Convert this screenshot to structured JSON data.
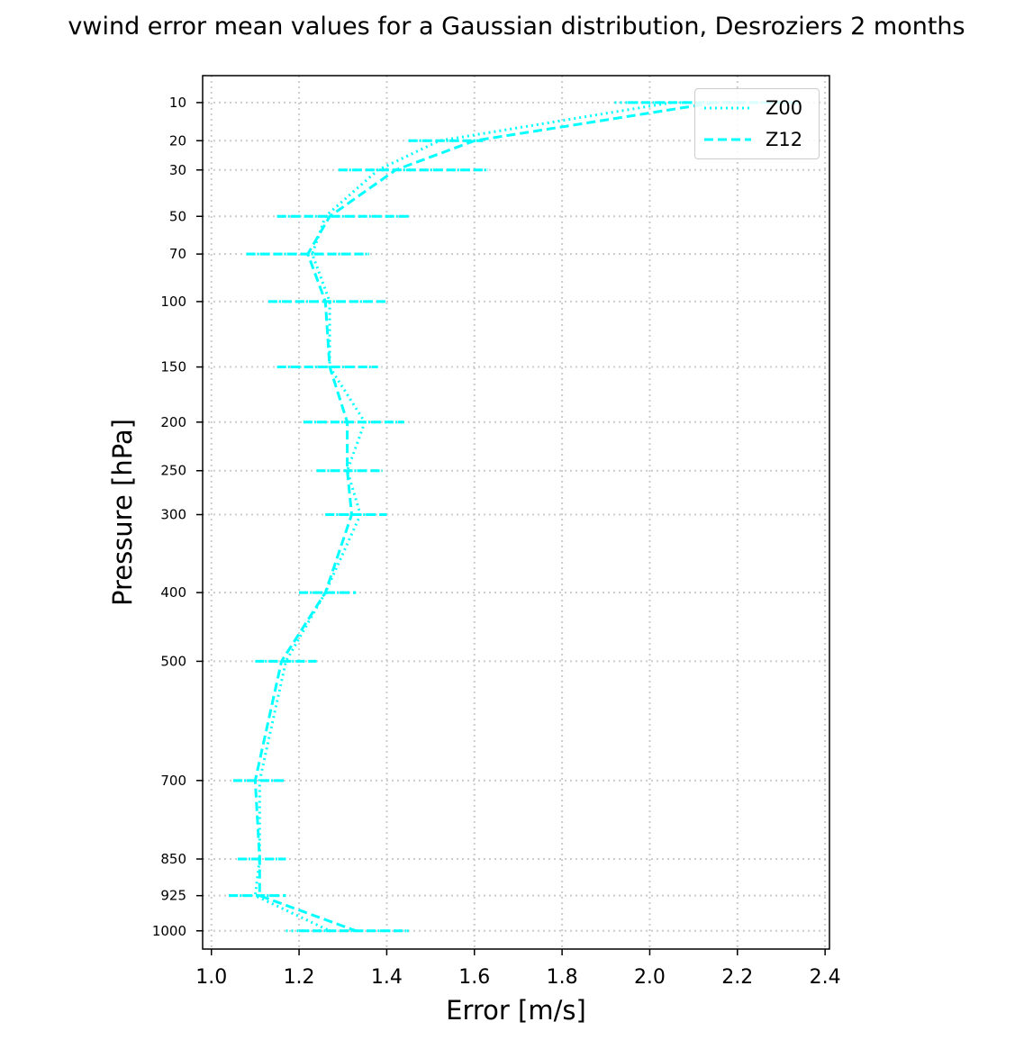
{
  "chart_data": {
    "type": "line",
    "title": "vwind error mean values for a Gaussian distribution, Desroziers 2 months",
    "xlabel": "Error [m/s]",
    "ylabel": "Pressure [hPa]",
    "xlim": [
      0.98,
      2.41
    ],
    "xticks": [
      1.0,
      1.2,
      1.4,
      1.6,
      1.8,
      2.0,
      2.2,
      2.4
    ],
    "xtick_labels": [
      "1.0",
      "1.2",
      "1.4",
      "1.6",
      "1.8",
      "2.0",
      "2.2",
      "2.4"
    ],
    "ylim": [
      1040,
      5
    ],
    "y_scale": "sqrt",
    "y_inverted": true,
    "yticks": [
      10,
      20,
      30,
      50,
      70,
      100,
      150,
      200,
      250,
      300,
      400,
      500,
      700,
      850,
      925,
      1000
    ],
    "ytick_labels": [
      "10",
      "20",
      "30",
      "50",
      "70",
      "100",
      "150",
      "200",
      "250",
      "300",
      "400",
      "500",
      "700",
      "850",
      "925",
      "1000"
    ],
    "grid": true,
    "legend_position": "top-right",
    "color": "#00ffff",
    "series": [
      {
        "name": "Z00",
        "style": "dotted",
        "pressure": [
          10,
          20,
          30,
          50,
          70,
          100,
          150,
          200,
          250,
          300,
          400,
          500,
          700,
          850,
          925,
          1000
        ],
        "values": [
          2.05,
          1.52,
          1.38,
          1.26,
          1.23,
          1.27,
          1.27,
          1.35,
          1.31,
          1.34,
          1.26,
          1.17,
          1.11,
          1.11,
          1.1,
          1.27
        ],
        "err_low": [
          1.92,
          1.45,
          1.29,
          1.15,
          1.08,
          1.13,
          1.15,
          1.21,
          1.24,
          1.26,
          1.2,
          1.11,
          1.05,
          1.06,
          1.04,
          1.17
        ],
        "err_high": [
          2.34,
          1.62,
          1.63,
          1.45,
          1.36,
          1.4,
          1.38,
          1.44,
          1.39,
          1.4,
          1.33,
          1.24,
          1.17,
          1.17,
          1.17,
          1.45
        ]
      },
      {
        "name": "Z12",
        "style": "dashed",
        "pressure": [
          10,
          20,
          30,
          50,
          70,
          100,
          150,
          200,
          250,
          300,
          400,
          500,
          700,
          850,
          925,
          1000
        ],
        "values": [
          2.15,
          1.6,
          1.42,
          1.27,
          1.22,
          1.26,
          1.27,
          1.31,
          1.31,
          1.32,
          1.26,
          1.16,
          1.1,
          1.11,
          1.11,
          1.33
        ],
        "err_low": [
          1.95,
          1.45,
          1.29,
          1.15,
          1.08,
          1.13,
          1.15,
          1.21,
          1.24,
          1.26,
          1.2,
          1.1,
          1.05,
          1.06,
          1.04,
          1.2
        ],
        "err_high": [
          2.34,
          1.62,
          1.63,
          1.45,
          1.36,
          1.4,
          1.38,
          1.44,
          1.39,
          1.4,
          1.33,
          1.24,
          1.17,
          1.17,
          1.17,
          1.45
        ]
      }
    ]
  }
}
